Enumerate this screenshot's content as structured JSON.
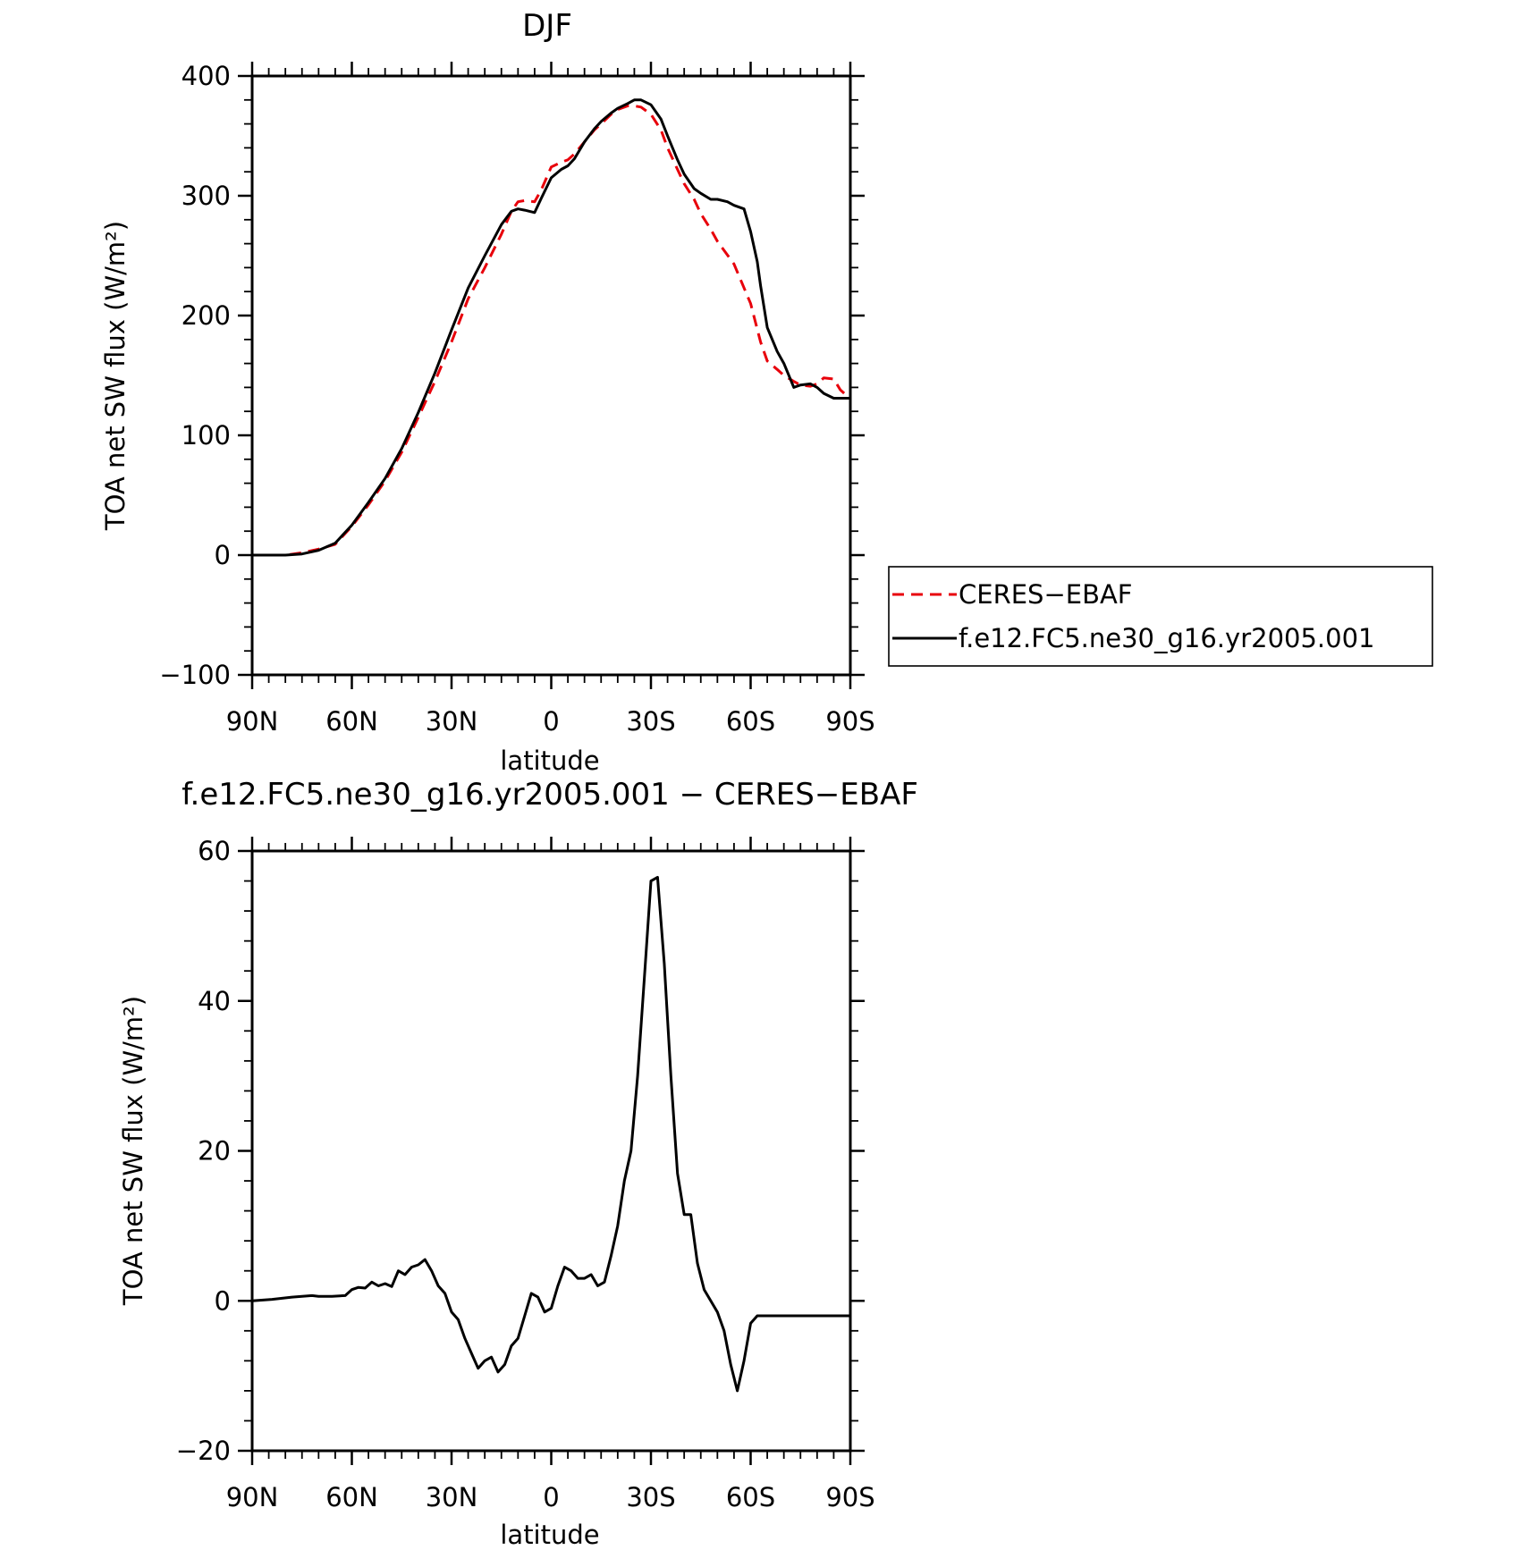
{
  "colors": {
    "observation": "#e8000b",
    "model": "#000000",
    "axes": "#000000"
  },
  "legend": {
    "entries": [
      {
        "label": "CERES−EBAF",
        "color": "#e8000b",
        "style": "dashed"
      },
      {
        "label": "f.e12.FC5.ne30_g16.yr2005.001",
        "color": "#000000",
        "style": "solid"
      }
    ]
  },
  "chart_data": [
    {
      "type": "line",
      "title": "DJF",
      "xlabel": "latitude",
      "ylabel": "TOA net SW flux (W/m²)",
      "xlim": [
        -90,
        90
      ],
      "ylim": [
        -100,
        400
      ],
      "xticks": [
        -90,
        -60,
        -30,
        0,
        30,
        60,
        90
      ],
      "xticklabels": [
        "90N",
        "60N",
        "30N",
        "0",
        "30S",
        "60S",
        "90S"
      ],
      "yticks": [
        -100,
        0,
        100,
        200,
        300,
        400
      ],
      "yticklabels": [
        "−100",
        "0",
        "100",
        "200",
        "300",
        "400"
      ],
      "x_note": "negative = north, positive = south",
      "series": [
        {
          "name": "CERES−EBAF",
          "style": "dashed",
          "x": [
            -90,
            -85,
            -80,
            -75,
            -70,
            -65,
            -60,
            -55,
            -50,
            -45,
            -40,
            -35,
            -30,
            -25,
            -20,
            -15,
            -12,
            -10,
            -8,
            -5,
            -3,
            0,
            3,
            5,
            7,
            10,
            13,
            15,
            18,
            20,
            23,
            25,
            27,
            30,
            33,
            35,
            38,
            40,
            43,
            45,
            48,
            50,
            55,
            60,
            63,
            65,
            68,
            70,
            73,
            75,
            78,
            80,
            82,
            85,
            87,
            89,
            90
          ],
          "y": [
            0,
            0,
            0,
            2,
            5,
            9,
            24,
            42,
            62,
            86,
            115,
            145,
            178,
            214,
            240,
            268,
            287,
            295,
            296,
            295,
            305,
            324,
            328,
            330,
            335,
            345,
            355,
            360,
            368,
            372,
            375,
            375,
            374,
            368,
            355,
            340,
            322,
            310,
            297,
            285,
            272,
            262,
            243,
            210,
            178,
            162,
            155,
            150,
            145,
            142,
            141,
            143,
            148,
            147,
            138,
            133,
            132
          ]
        },
        {
          "name": "f.e12.FC5.ne30_g16.yr2005.001",
          "style": "solid",
          "x": [
            -90,
            -85,
            -80,
            -75,
            -70,
            -65,
            -60,
            -55,
            -50,
            -45,
            -40,
            -35,
            -30,
            -25,
            -20,
            -15,
            -12,
            -10,
            -8,
            -5,
            -3,
            0,
            3,
            5,
            7,
            10,
            13,
            15,
            18,
            20,
            23,
            25,
            27,
            30,
            33,
            35,
            38,
            40,
            43,
            45,
            48,
            50,
            53,
            55,
            58,
            60,
            62,
            63,
            65,
            68,
            70,
            73,
            75,
            78,
            80,
            82,
            85,
            87,
            89,
            90
          ],
          "y": [
            0,
            0,
            0,
            1,
            4,
            10,
            25,
            44,
            64,
            89,
            119,
            152,
            188,
            223,
            250,
            276,
            287,
            289,
            288,
            286,
            298,
            315,
            322,
            325,
            331,
            345,
            356,
            362,
            369,
            373,
            377,
            380,
            380,
            376,
            364,
            350,
            330,
            318,
            306,
            302,
            297,
            297,
            295,
            292,
            289,
            270,
            245,
            225,
            190,
            170,
            160,
            140,
            142,
            143,
            140,
            135,
            131,
            131,
            131,
            131
          ]
        }
      ]
    },
    {
      "type": "line",
      "title": "f.e12.FC5.ne30_g16.yr2005.001 − CERES−EBAF",
      "xlabel": "latitude",
      "ylabel": "TOA net SW flux (W/m²)",
      "xlim": [
        -90,
        90
      ],
      "ylim": [
        -20,
        60
      ],
      "xticks": [
        -90,
        -60,
        -30,
        0,
        30,
        60,
        90
      ],
      "xticklabels": [
        "90N",
        "60N",
        "30N",
        "0",
        "30S",
        "60S",
        "90S"
      ],
      "yticks": [
        -20,
        0,
        20,
        40,
        60
      ],
      "yticklabels": [
        "−20",
        "0",
        "20",
        "40",
        "60"
      ],
      "x_note": "negative = north, positive = south",
      "series": [
        {
          "style": "solid",
          "x": [
            -90,
            -84,
            -78,
            -72,
            -70,
            -66,
            -62,
            -60,
            -58,
            -56,
            -54,
            -52,
            -50,
            -48,
            -46,
            -44,
            -42,
            -40,
            -38,
            -36,
            -34,
            -32,
            -30,
            -28,
            -26,
            -24,
            -22,
            -20,
            -18,
            -16,
            -14,
            -12,
            -10,
            -8,
            -6,
            -4,
            -2,
            0,
            2,
            4,
            6,
            8,
            10,
            12,
            14,
            16,
            18,
            20,
            22,
            24,
            26,
            28,
            30,
            32,
            34,
            36,
            38,
            40,
            42,
            44,
            46,
            48,
            50,
            52,
            54,
            56,
            58,
            60,
            62,
            64,
            66,
            68,
            70,
            72,
            74,
            76,
            78,
            80,
            82,
            84,
            86,
            88,
            90
          ],
          "y": [
            0,
            0.2,
            0.5,
            0.7,
            0.6,
            0.6,
            0.7,
            1.5,
            1.8,
            1.7,
            2.5,
            2.0,
            2.3,
            1.9,
            4.0,
            3.5,
            4.5,
            4.8,
            5.5,
            4.0,
            2.0,
            1.0,
            -1.5,
            -2.5,
            -5.0,
            -7.0,
            -9.0,
            -8.0,
            -7.5,
            -9.5,
            -8.5,
            -6.0,
            -5.0,
            -2.0,
            1.0,
            0.5,
            -1.5,
            -1.0,
            2.0,
            4.5,
            4.0,
            3.0,
            3.0,
            3.5,
            2.0,
            2.5,
            6.0,
            10.0,
            16.0,
            20.0,
            30.0,
            43.0,
            56.0,
            56.5,
            45.0,
            30.0,
            17.0,
            11.5,
            11.5,
            5.0,
            1.5,
            0,
            -1.5,
            -4.0,
            -8.5,
            -12.0,
            -8.0,
            -3.0,
            -2.0,
            -2.0,
            -2.0,
            -2.0,
            -2.0,
            -2.0,
            -2.0,
            -2.0,
            -2.0,
            -2.0,
            -2.0,
            -2.0,
            -2.0,
            -2.0,
            -2.0
          ]
        }
      ]
    }
  ]
}
